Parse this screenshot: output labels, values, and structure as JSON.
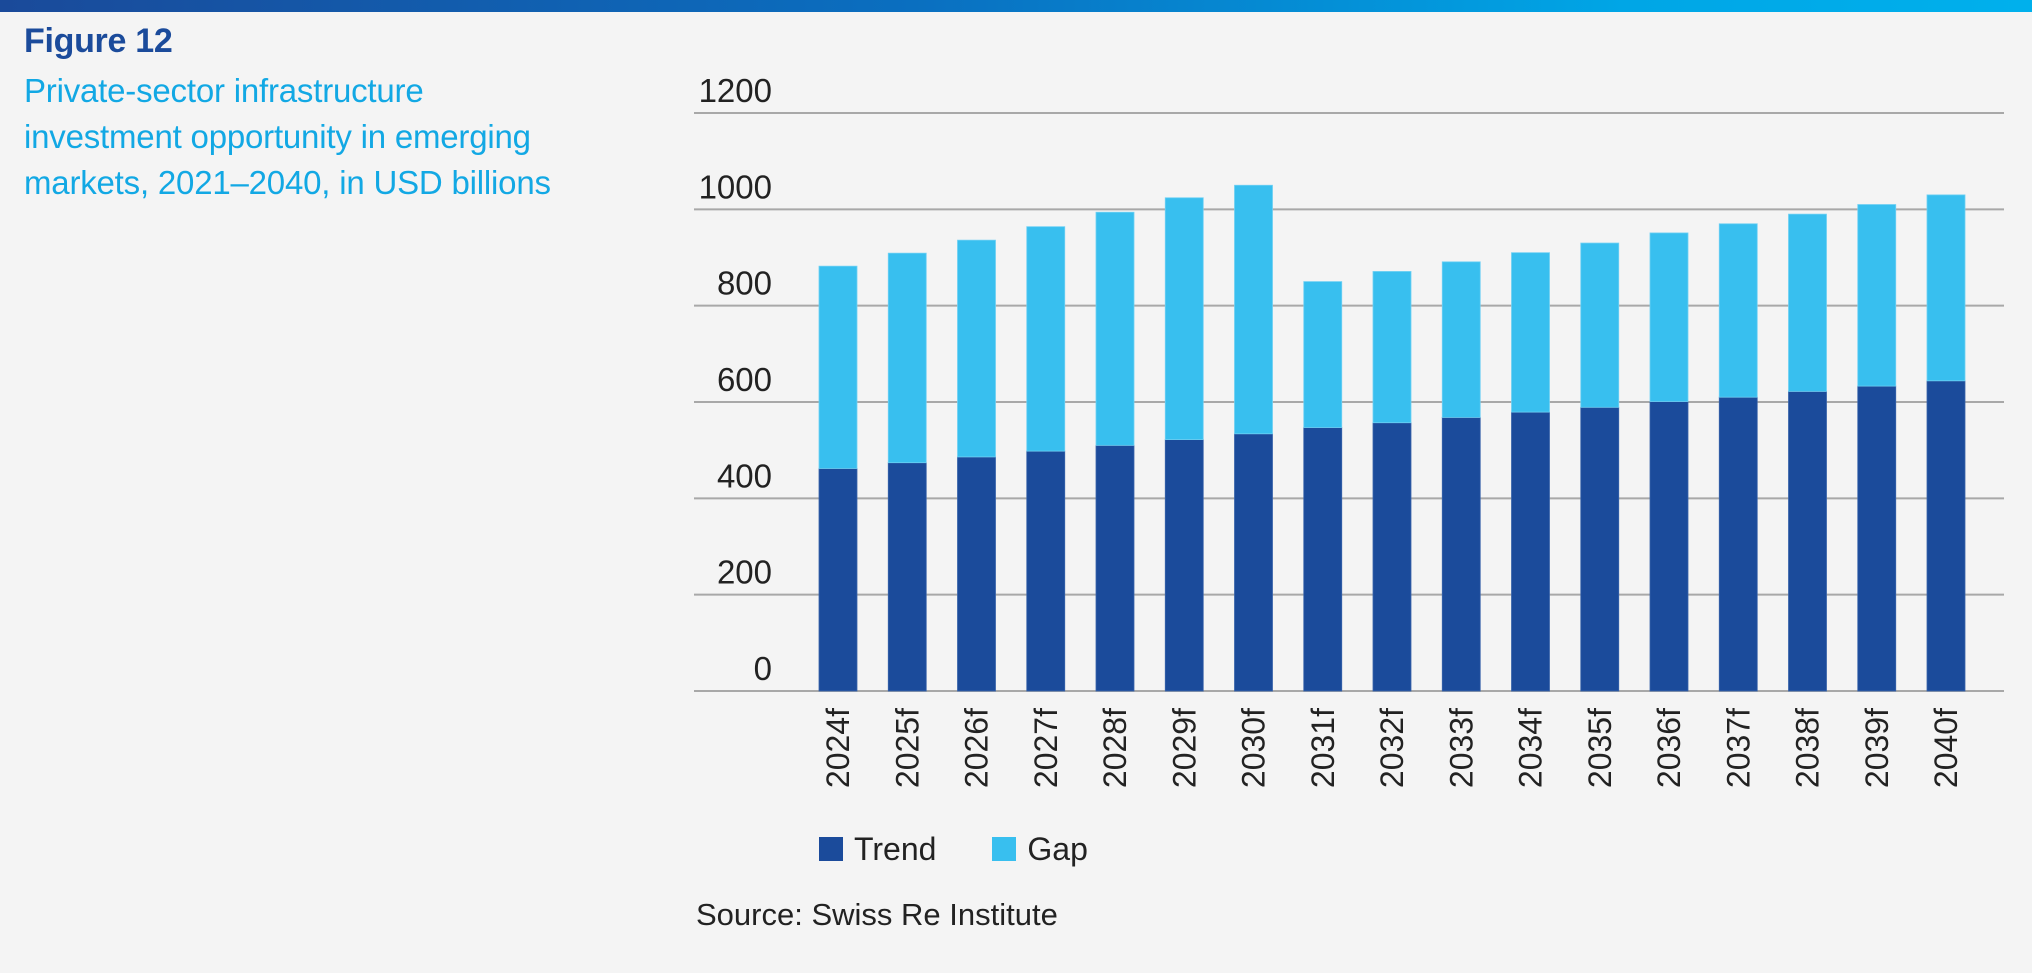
{
  "header": {
    "figure_label": "Figure 12",
    "title_lines": [
      "Private-sector infrastructure",
      "investment opportunity in emerging",
      "markets, 2021–2040, in USD billions"
    ]
  },
  "colors": {
    "trend": "#1b4b9b",
    "gap": "#38bfef",
    "grid": "#a8a8a8",
    "title": "#12a8e4",
    "figure_label": "#1b4b9b"
  },
  "source": "Source: Swiss Re Institute",
  "chart_data": {
    "type": "bar",
    "stacked": true,
    "title": "Private-sector infrastructure investment opportunity in emerging markets, 2021–2040, in USD billions",
    "xlabel": "",
    "ylabel": "",
    "ylim": [
      0,
      1200
    ],
    "yticks": [
      0,
      200,
      400,
      600,
      800,
      1000,
      1200
    ],
    "grid": true,
    "legend_position": "bottom-left",
    "categories": [
      "2024f",
      "2025f",
      "2026f",
      "2027f",
      "2028f",
      "2029f",
      "2030f",
      "2031f",
      "2032f",
      "2033f",
      "2034f",
      "2035f",
      "2036f",
      "2037f",
      "2038f",
      "2039f",
      "2040f"
    ],
    "series": [
      {
        "name": "Trend",
        "values": [
          462,
          474,
          486,
          498,
          510,
          522,
          534,
          547,
          557,
          568,
          579,
          589,
          601,
          610,
          622,
          633,
          644
        ]
      },
      {
        "name": "Gap",
        "values": [
          420,
          435,
          450,
          466,
          484,
          502,
          516,
          303,
          314,
          323,
          331,
          341,
          350,
          360,
          368,
          377,
          386
        ]
      }
    ],
    "totals": [
      882,
      909,
      936,
      964,
      994,
      1024,
      1050,
      850,
      871,
      891,
      910,
      930,
      951,
      970,
      990,
      1010,
      1030
    ]
  }
}
